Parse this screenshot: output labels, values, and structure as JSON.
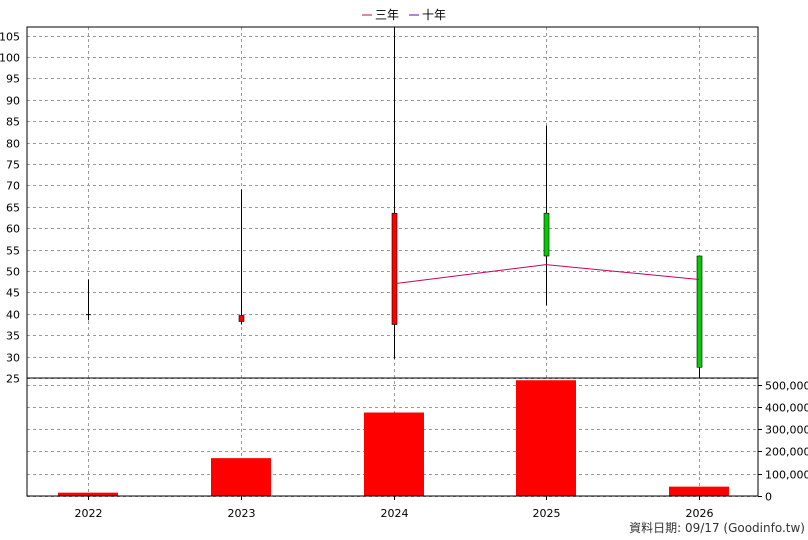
{
  "legend": [
    {
      "label": "三年",
      "color": "#cc0066"
    },
    {
      "label": "十年",
      "color": "#6600cc"
    }
  ],
  "source_text": "資料日期: 09/17  (Goodinfo.tw)",
  "colors": {
    "up": "#ff0000",
    "down": "#00cc00",
    "volume": "#ff0000",
    "ma3": "#cc0066"
  },
  "chart_data": [
    {
      "type": "candlestick",
      "title": "",
      "categories": [
        "2022",
        "2023",
        "2024",
        "2025",
        "2026"
      ],
      "ylim": [
        25,
        107
      ],
      "y_ticks": [
        25,
        30,
        35,
        40,
        45,
        50,
        55,
        60,
        65,
        70,
        75,
        80,
        85,
        90,
        95,
        100,
        105
      ],
      "grid": true,
      "legend_position": "top-center",
      "candles": [
        {
          "x": "2022",
          "open": 39.8,
          "close": 39.8,
          "high": 48,
          "low": 38.5
        },
        {
          "x": "2023",
          "open": 38.2,
          "close": 39.6,
          "high": 69,
          "low": 37.5
        },
        {
          "x": "2024",
          "open": 37.5,
          "close": 63.5,
          "high": 107,
          "low": 29.5
        },
        {
          "x": "2025",
          "open": 63.5,
          "close": 53.5,
          "high": 84,
          "low": 42
        },
        {
          "x": "2026",
          "open": 53.5,
          "close": 27.5,
          "high": 53.5,
          "low": 25
        }
      ],
      "series": [
        {
          "name": "三年",
          "values": [
            null,
            null,
            47,
            51.5,
            48
          ]
        }
      ]
    },
    {
      "type": "bar",
      "title": "",
      "categories": [
        "2022",
        "2023",
        "2024",
        "2025",
        "2026"
      ],
      "values": [
        15000,
        170000,
        375000,
        520000,
        42000
      ],
      "ylim": [
        0,
        530000
      ],
      "y_ticks": [
        0,
        100000,
        200000,
        300000,
        400000,
        500000
      ],
      "y_tick_labels": [
        "0",
        "100,000",
        "200,000",
        "300,000",
        "400,000",
        "500,000"
      ],
      "grid": true
    }
  ]
}
